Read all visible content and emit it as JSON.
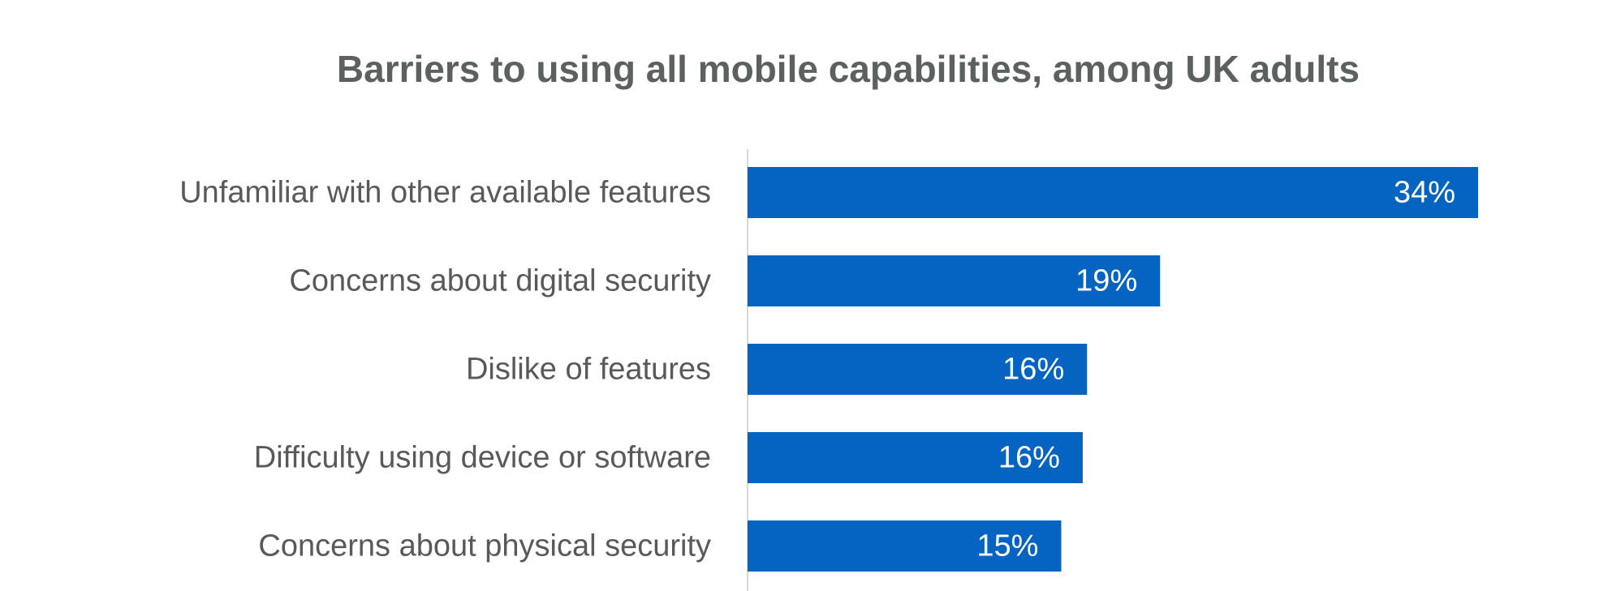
{
  "chart_data": {
    "type": "bar",
    "orientation": "horizontal",
    "title": "Barriers to using all mobile capabilities, among UK adults",
    "categories": [
      "Unfamiliar with other available features",
      "Concerns about digital security",
      "Dislike of features",
      "Difficulty using device or software",
      "Concerns about physical security"
    ],
    "values": [
      34,
      19.2,
      15.8,
      15.6,
      14.6
    ],
    "value_labels": [
      "34%",
      "19%",
      "16%",
      "16%",
      "15%"
    ],
    "color": "#0563c1"
  }
}
